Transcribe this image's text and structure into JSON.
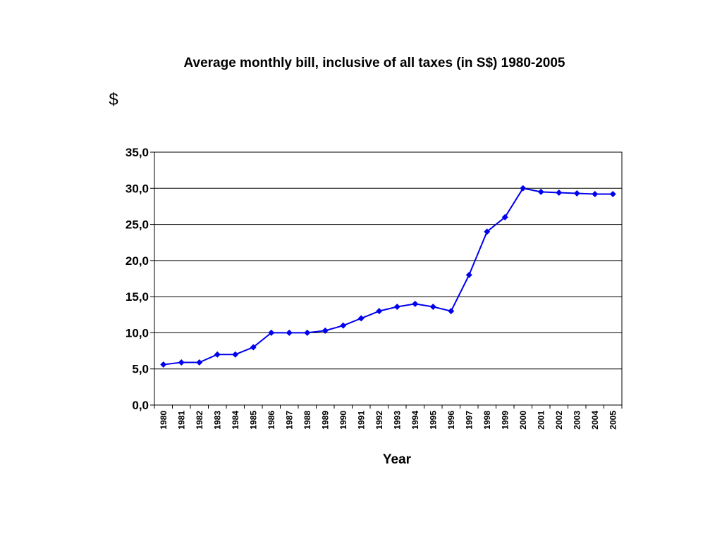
{
  "chart_data": {
    "type": "line",
    "title": "Average monthly bill, inclusive of all taxes (in S$) 1980-2005",
    "unit_label": "$",
    "xlabel": "Year",
    "ylabel": "",
    "ylim": [
      0,
      35
    ],
    "y_ticks": [
      "0,0",
      "5,0",
      "10,0",
      "15,0",
      "20,0",
      "25,0",
      "30,0",
      "35,0"
    ],
    "y_tick_values": [
      0,
      5,
      10,
      15,
      20,
      25,
      30,
      35
    ],
    "grid": "horizontal",
    "legend": "none",
    "categories": [
      "1980",
      "1981",
      "1982",
      "1983",
      "1984",
      "1985",
      "1986",
      "1987",
      "1988",
      "1989",
      "1990",
      "1991",
      "1992",
      "1993",
      "1994",
      "1995",
      "1996",
      "1997",
      "1998",
      "1999",
      "2000",
      "2001",
      "2002",
      "2003",
      "2004",
      "2005"
    ],
    "series": [
      {
        "color": "#0000ee",
        "marker": "diamond",
        "values": [
          5.6,
          5.9,
          5.9,
          7.0,
          7.0,
          8.0,
          10.0,
          10.0,
          10.0,
          10.3,
          11.0,
          12.0,
          13.0,
          13.6,
          14.0,
          13.6,
          13.0,
          18.0,
          24.0,
          26.0,
          30.0,
          29.5,
          29.4,
          29.3,
          29.2,
          29.2
        ]
      }
    ]
  }
}
